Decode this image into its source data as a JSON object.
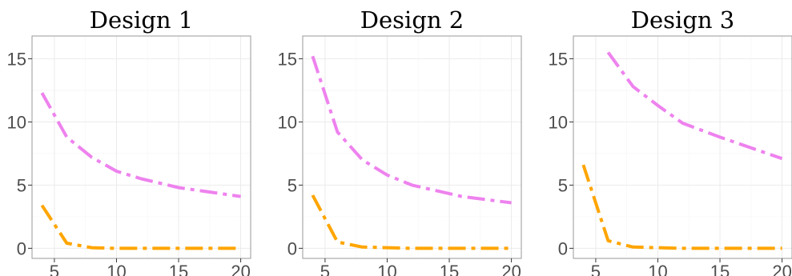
{
  "chart_data": [
    {
      "type": "line",
      "title": "Design 1",
      "xlabel": "",
      "ylabel": "",
      "xlim": [
        3.2,
        20.8
      ],
      "ylim": [
        -0.8,
        16.8
      ],
      "xticks": [
        5,
        10,
        15,
        20
      ],
      "yticks": [
        0,
        5,
        10,
        15
      ],
      "grid": true,
      "series": [
        {
          "color": "#ee82ee",
          "style": "dashdot",
          "x": [
            4,
            6,
            8,
            10,
            12,
            15,
            20
          ],
          "y": [
            12.3,
            8.8,
            7.2,
            6.1,
            5.5,
            4.8,
            4.1
          ]
        },
        {
          "color": "#ffa500",
          "style": "dashdot",
          "x": [
            4,
            6,
            8,
            10,
            12,
            15,
            20
          ],
          "y": [
            3.4,
            0.4,
            0.05,
            0.0,
            0.0,
            0.0,
            0.0
          ]
        }
      ]
    },
    {
      "type": "line",
      "title": "Design 2",
      "xlabel": "",
      "ylabel": "",
      "xlim": [
        3.2,
        20.8
      ],
      "ylim": [
        -0.8,
        16.8
      ],
      "xticks": [
        5,
        10,
        15,
        20
      ],
      "yticks": [
        0,
        5,
        10,
        15
      ],
      "grid": true,
      "series": [
        {
          "color": "#ee82ee",
          "style": "dashdot",
          "x": [
            4,
            6,
            8,
            10,
            12,
            16,
            20
          ],
          "y": [
            15.2,
            9.2,
            7.0,
            5.8,
            5.0,
            4.1,
            3.6
          ]
        },
        {
          "color": "#ffa500",
          "style": "dashdot",
          "x": [
            4,
            6,
            8,
            10,
            12,
            16,
            20
          ],
          "y": [
            4.2,
            0.5,
            0.1,
            0.05,
            0.0,
            0.0,
            0.0
          ]
        }
      ]
    },
    {
      "type": "line",
      "title": "Design 3",
      "xlabel": "",
      "ylabel": "",
      "xlim": [
        3.2,
        20.8
      ],
      "ylim": [
        -0.8,
        16.8
      ],
      "xticks": [
        5,
        10,
        15,
        20
      ],
      "yticks": [
        0,
        5,
        10,
        15
      ],
      "grid": true,
      "series": [
        {
          "color": "#ee82ee",
          "style": "dashdot",
          "x": [
            6,
            8,
            10,
            12,
            15,
            20
          ],
          "y": [
            15.5,
            12.8,
            11.3,
            9.9,
            8.8,
            7.1
          ]
        },
        {
          "color": "#ffa500",
          "style": "dashdot",
          "x": [
            4,
            6,
            8,
            10,
            12,
            15,
            20
          ],
          "y": [
            6.6,
            0.6,
            0.1,
            0.05,
            0.0,
            0.0,
            0.0
          ]
        }
      ]
    }
  ]
}
